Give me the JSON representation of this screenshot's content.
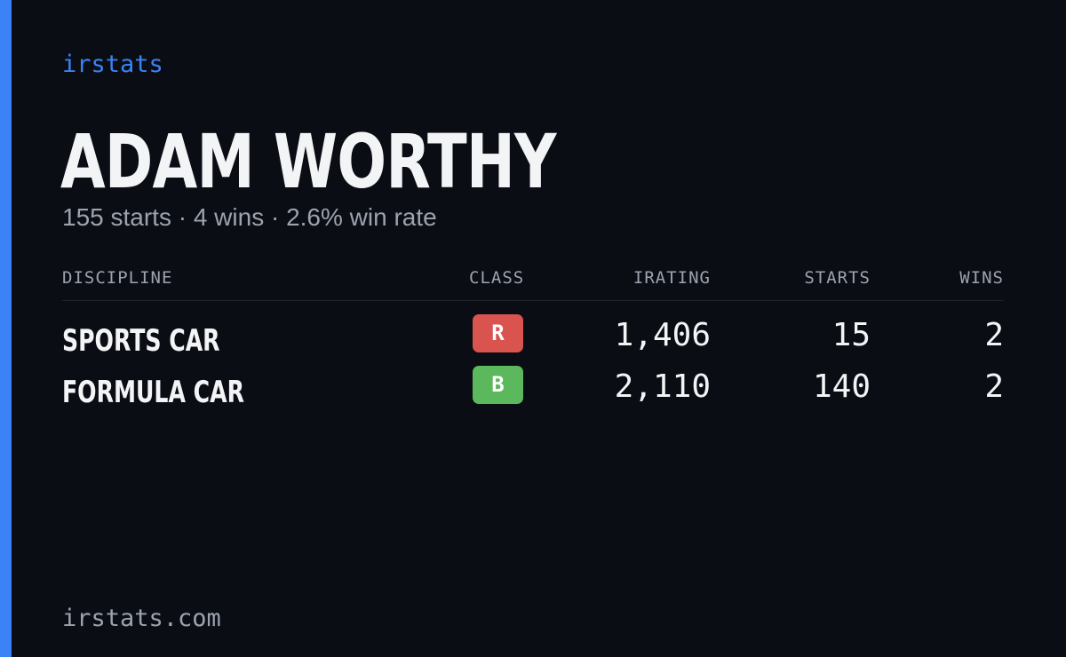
{
  "brand": "irstats",
  "colors": {
    "accent": "#3b82f6",
    "background": "#0a0d14",
    "class_r": "#d9534f",
    "class_b": "#5cb85c"
  },
  "player": {
    "name": "ADAM WORTHY",
    "summary": "155 starts · 4 wins · 2.6% win rate"
  },
  "table": {
    "headers": {
      "discipline": "DISCIPLINE",
      "class": "CLASS",
      "irating": "IRATING",
      "starts": "STARTS",
      "wins": "WINS"
    },
    "rows": [
      {
        "discipline": "SPORTS CAR",
        "class": "R",
        "class_color": "#d9534f",
        "irating": "1,406",
        "starts": "15",
        "wins": "2"
      },
      {
        "discipline": "FORMULA CAR",
        "class": "B",
        "class_color": "#5cb85c",
        "irating": "2,110",
        "starts": "140",
        "wins": "2"
      }
    ]
  },
  "footer": "irstats.com"
}
